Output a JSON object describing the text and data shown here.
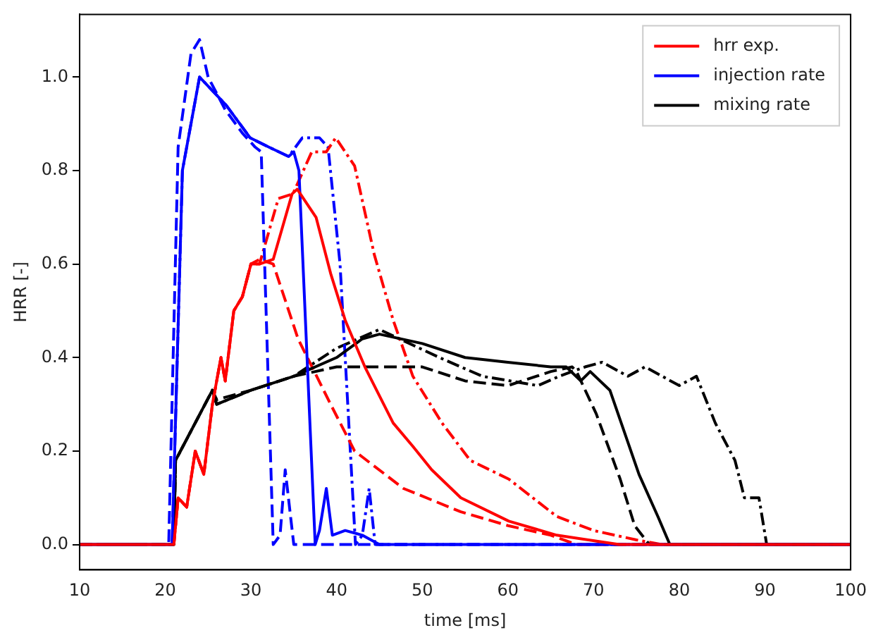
{
  "chart_data": {
    "type": "line",
    "xlabel": "time [ms]",
    "ylabel": "HRR [-]",
    "xlim": [
      10,
      100
    ],
    "ylim": [
      -0.054,
      1.134
    ],
    "xticks": [
      10,
      20,
      30,
      40,
      50,
      60,
      70,
      80,
      90,
      100
    ],
    "yticks": [
      {
        "value": 0,
        "label": "0.0"
      },
      {
        "value": 0.2,
        "label": "0.2"
      },
      {
        "value": 0.4,
        "label": "0.4"
      },
      {
        "value": 0.6,
        "label": "0.6"
      },
      {
        "value": 0.8,
        "label": "0.8"
      },
      {
        "value": 1,
        "label": "1.0"
      }
    ],
    "grid": false,
    "legend": "top right",
    "marker": "none",
    "series": [
      {
        "name": "hrr exp.",
        "color": "#ff0000",
        "line_style": "solid",
        "x": [
          10,
          21,
          21.5,
          22.5,
          23.5,
          24.5,
          25.5,
          26.5,
          27,
          28,
          29,
          30,
          31,
          32.6,
          34.8,
          35.4,
          37.6,
          39.3,
          41,
          43.3,
          46.6,
          48.9,
          51.1,
          54.5,
          60.1,
          65.7,
          73,
          100
        ],
        "values": [
          0,
          0,
          0.1,
          0.08,
          0.2,
          0.15,
          0.3,
          0.4,
          0.35,
          0.5,
          0.53,
          0.6,
          0.6,
          0.61,
          0.75,
          0.76,
          0.7,
          0.58,
          0.48,
          0.38,
          0.26,
          0.21,
          0.16,
          0.1,
          0.05,
          0.02,
          0,
          0
        ]
      },
      {
        "name": "injection rate",
        "color": "#0000ff",
        "line_style": "solid",
        "x": [
          10,
          20.8,
          22,
          24,
          27.1,
          29.9,
          32.1,
          34.4,
          35,
          35.6,
          37.5,
          38,
          38.8,
          39.5,
          41,
          43,
          45,
          100
        ],
        "values": [
          0,
          0,
          0.8,
          1.0,
          0.94,
          0.87,
          0.85,
          0.83,
          0.84,
          0.8,
          0,
          0.03,
          0.12,
          0.02,
          0.03,
          0.02,
          0,
          0
        ]
      },
      {
        "name": "mixing rate",
        "color": "#000000",
        "line_style": "solid",
        "x": [
          10,
          21,
          21.2,
          25.5,
          26,
          30,
          35,
          40,
          43,
          45,
          50,
          55,
          60,
          65,
          66.8,
          68.5,
          69.6,
          71.9,
          75.3,
          77.5,
          78.9,
          100
        ],
        "values": [
          0,
          0,
          0.18,
          0.33,
          0.3,
          0.33,
          0.36,
          0.4,
          0.44,
          0.45,
          0.43,
          0.4,
          0.39,
          0.38,
          0.38,
          0.35,
          0.37,
          0.33,
          0.15,
          0.06,
          0,
          0
        ]
      },
      {
        "color": "#ff0000",
        "line_style": "dashed",
        "x": [
          10,
          21,
          21.5,
          22.5,
          23.5,
          24.5,
          25.5,
          26.5,
          27,
          28,
          29,
          30,
          31,
          32.6,
          35.5,
          39.3,
          42.1,
          47.8,
          54.5,
          60.1,
          65,
          68,
          100
        ],
        "values": [
          0,
          0,
          0.1,
          0.08,
          0.2,
          0.15,
          0.3,
          0.4,
          0.35,
          0.5,
          0.53,
          0.6,
          0.61,
          0.6,
          0.44,
          0.3,
          0.2,
          0.12,
          0.07,
          0.04,
          0.02,
          0,
          0
        ]
      },
      {
        "color": "#0000ff",
        "line_style": "dashed",
        "x": [
          10,
          20.4,
          21.5,
          23,
          24,
          25,
          27,
          29,
          30.5,
          31.2,
          32.6,
          33.4,
          34,
          35,
          100
        ],
        "values": [
          0,
          0,
          0.85,
          1.05,
          1.08,
          1.0,
          0.93,
          0.88,
          0.85,
          0.84,
          0,
          0.02,
          0.16,
          0,
          0
        ]
      },
      {
        "color": "#000000",
        "line_style": "dashed",
        "x": [
          10,
          21,
          21.2,
          25.5,
          26,
          30,
          35,
          40,
          45,
          50,
          55,
          60,
          65,
          67.5,
          68,
          70.3,
          73.1,
          74.8,
          76.5,
          100
        ],
        "values": [
          0,
          0,
          0.18,
          0.33,
          0.31,
          0.33,
          0.36,
          0.38,
          0.38,
          0.38,
          0.35,
          0.34,
          0.37,
          0.38,
          0.37,
          0.28,
          0.14,
          0.04,
          0,
          0
        ]
      },
      {
        "color": "#ff0000",
        "line_style": "dashdot",
        "x": [
          10,
          21,
          21.5,
          22.5,
          23.5,
          24.5,
          25.5,
          26.5,
          27,
          28,
          29,
          30,
          31,
          33.2,
          34.9,
          37.1,
          38.8,
          39.9,
          42.1,
          44.4,
          46.6,
          48.9,
          52.3,
          55.6,
          60.1,
          65.7,
          70,
          75,
          78,
          100
        ],
        "values": [
          0,
          0,
          0.1,
          0.08,
          0.2,
          0.15,
          0.3,
          0.4,
          0.35,
          0.5,
          0.53,
          0.6,
          0.6,
          0.74,
          0.75,
          0.84,
          0.84,
          0.87,
          0.81,
          0.62,
          0.48,
          0.36,
          0.26,
          0.18,
          0.14,
          0.06,
          0.03,
          0.01,
          0,
          0
        ]
      },
      {
        "color": "#0000ff",
        "line_style": "dashdot",
        "x": [
          10,
          20.8,
          22,
          24,
          27.1,
          29.9,
          32.1,
          34.4,
          36,
          38,
          39,
          40.4,
          42.2,
          43,
          43.8,
          44.5,
          100
        ],
        "values": [
          0,
          0,
          0.8,
          1.0,
          0.94,
          0.87,
          0.85,
          0.83,
          0.87,
          0.87,
          0.85,
          0.6,
          0,
          0.02,
          0.12,
          0,
          0
        ]
      },
      {
        "color": "#000000",
        "line_style": "dashdot",
        "x": [
          10,
          21,
          21.2,
          25.5,
          26,
          30,
          35,
          40,
          45,
          52,
          57,
          63.5,
          66,
          69,
          71,
          74,
          76,
          78,
          80,
          82,
          84.2,
          86.5,
          87.6,
          89.3,
          90.2,
          100
        ],
        "values": [
          0,
          0,
          0.18,
          0.33,
          0.3,
          0.33,
          0.36,
          0.42,
          0.46,
          0.4,
          0.36,
          0.34,
          0.36,
          0.38,
          0.39,
          0.36,
          0.38,
          0.36,
          0.34,
          0.36,
          0.26,
          0.18,
          0.1,
          0.1,
          0,
          0
        ]
      }
    ]
  }
}
